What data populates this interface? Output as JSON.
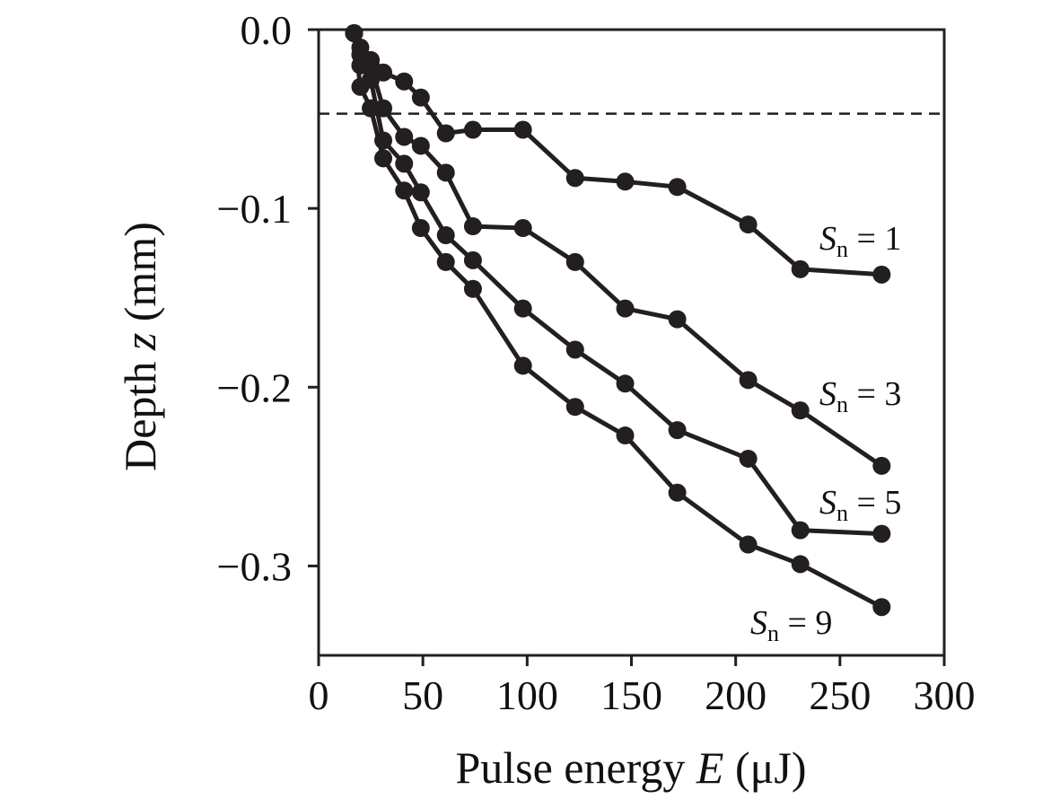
{
  "chart_data": {
    "type": "line",
    "xlabel": "Pulse energy E (μJ)",
    "xlabel_parts": {
      "pre": "Pulse energy ",
      "var": "E",
      "post": " (μJ)"
    },
    "ylabel": "Depth z (mm)",
    "ylabel_parts": {
      "pre": "Depth ",
      "var": "z",
      "post": " (mm)"
    },
    "xlim": [
      0,
      300
    ],
    "ylim": [
      -0.35,
      0.0
    ],
    "x_ticks": [
      0,
      50,
      100,
      150,
      200,
      250,
      300
    ],
    "x_tick_labels": [
      "0",
      "50",
      "100",
      "150",
      "200",
      "250",
      "300"
    ],
    "y_ticks": [
      0.0,
      -0.1,
      -0.2,
      -0.3
    ],
    "y_tick_labels": [
      "0.0",
      "−0.1",
      "−0.2",
      "−0.3"
    ],
    "grid": false,
    "reference_line": {
      "y": -0.047,
      "style": "dashed"
    },
    "marker_color": "#231f20",
    "series": [
      {
        "label_var": "S",
        "label_sub": "n",
        "label_rest": " = 1",
        "x": [
          17,
          20,
          25,
          31,
          41,
          49,
          61,
          74,
          98,
          123,
          147,
          172,
          206,
          231,
          270
        ],
        "y": [
          -0.002,
          -0.01,
          -0.017,
          -0.024,
          -0.029,
          -0.038,
          -0.058,
          -0.056,
          -0.056,
          -0.083,
          -0.085,
          -0.088,
          -0.109,
          -0.134,
          -0.137
        ]
      },
      {
        "label_var": "S",
        "label_sub": "n",
        "label_rest": " = 3",
        "x": [
          17,
          20,
          25,
          31,
          41,
          49,
          61,
          74,
          98,
          123,
          147,
          172,
          206,
          231,
          270
        ],
        "y": [
          -0.002,
          -0.014,
          -0.02,
          -0.044,
          -0.06,
          -0.065,
          -0.08,
          -0.11,
          -0.111,
          -0.13,
          -0.156,
          -0.162,
          -0.196,
          -0.213,
          -0.244
        ]
      },
      {
        "label_var": "S",
        "label_sub": "n",
        "label_rest": " = 5",
        "x": [
          17,
          20,
          25,
          31,
          41,
          49,
          61,
          74,
          98,
          123,
          147,
          172,
          206,
          231,
          270
        ],
        "y": [
          -0.002,
          -0.02,
          -0.028,
          -0.062,
          -0.075,
          -0.091,
          -0.115,
          -0.129,
          -0.156,
          -0.179,
          -0.198,
          -0.224,
          -0.24,
          -0.28,
          -0.282
        ]
      },
      {
        "label_var": "S",
        "label_sub": "n",
        "label_rest": " = 9",
        "x": [
          17,
          20,
          25,
          31,
          41,
          49,
          61,
          74,
          98,
          123,
          147,
          172,
          206,
          231,
          270
        ],
        "y": [
          -0.002,
          -0.032,
          -0.044,
          -0.072,
          -0.09,
          -0.111,
          -0.13,
          -0.145,
          -0.188,
          -0.211,
          -0.227,
          -0.259,
          -0.288,
          -0.299,
          -0.323
        ]
      }
    ]
  }
}
